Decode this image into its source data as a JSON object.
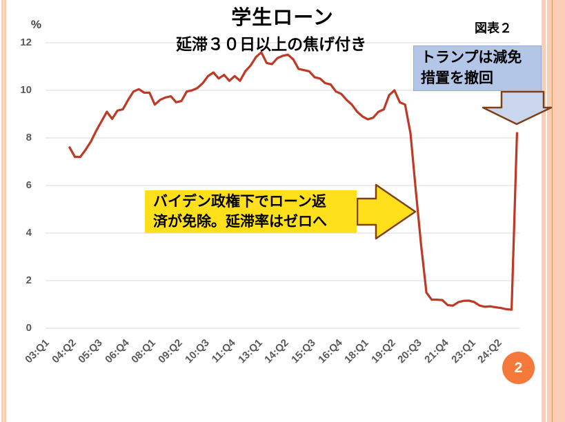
{
  "header": {
    "title": "学生ローン",
    "subtitle": "延滞３０日以上の焦げ付き",
    "figure_label": "図表２"
  },
  "page": {
    "number": "2"
  },
  "annotations": {
    "biden": {
      "line1": "バイデン政権下でローン返",
      "line2": "済が免除。延滞率はゼロへ"
    },
    "trump": {
      "line1": "トランプは減免",
      "line2": "措置を撤回"
    }
  },
  "chart_data": {
    "type": "line",
    "title": "学生ローン",
    "subtitle": "延滞３０日以上の焦げ付き",
    "unit": "%",
    "ylabel": "%",
    "ylim": [
      0,
      12
    ],
    "y_ticks": [
      0,
      2,
      4,
      6,
      8,
      10,
      12
    ],
    "grid": true,
    "x_tick_labels": [
      "03:Q1",
      "04:Q2",
      "05:Q3",
      "06:Q4",
      "08:Q1",
      "09:Q2",
      "10:Q3",
      "11:Q4",
      "13:Q1",
      "14:Q2",
      "15:Q3",
      "16:Q4",
      "18:Q1",
      "19:Q2",
      "20:Q3",
      "21:Q4",
      "23:Q1",
      "24:Q2"
    ],
    "x_tick_interval_quarters": 5,
    "x_quarterly_from": "03:Q1",
    "x_quarterly_to": "25:Q1",
    "line_color": "#be3a26",
    "values": [
      null,
      null,
      null,
      null,
      7.6,
      7.2,
      7.2,
      7.5,
      7.85,
      8.3,
      8.7,
      9.1,
      8.8,
      9.15,
      9.2,
      9.6,
      9.95,
      10.05,
      9.9,
      9.9,
      9.4,
      9.6,
      9.7,
      9.75,
      9.5,
      9.55,
      9.95,
      10.0,
      10.1,
      10.3,
      10.6,
      10.75,
      10.5,
      10.65,
      10.4,
      10.6,
      10.4,
      10.8,
      11.05,
      11.4,
      11.6,
      11.15,
      11.1,
      11.35,
      11.45,
      11.5,
      11.3,
      10.9,
      10.85,
      10.8,
      10.55,
      10.5,
      10.3,
      10.25,
      9.95,
      9.85,
      9.6,
      9.4,
      9.1,
      8.9,
      8.78,
      8.85,
      9.1,
      9.2,
      9.8,
      10.0,
      9.5,
      9.4,
      8.2,
      5.8,
      3.5,
      1.5,
      1.2,
      1.2,
      1.18,
      0.97,
      0.95,
      1.1,
      1.15,
      1.16,
      1.1,
      0.95,
      0.9,
      0.92,
      0.88,
      0.85,
      0.8,
      0.78,
      8.2
    ]
  },
  "colors": {
    "line": "#be3a26",
    "grid": "#d9d9d9",
    "axis_text": "#595959",
    "stripe": "#fbcdb4",
    "stripe_accent": "#e18b57",
    "note_yellow": "#ffe01a",
    "note_blue": "#b4c6e7",
    "note_blue_border": "#8faadc",
    "arrow_blue": "#c9d6ee",
    "brown": "#7f3f12",
    "page_circle": "#f4793b"
  }
}
